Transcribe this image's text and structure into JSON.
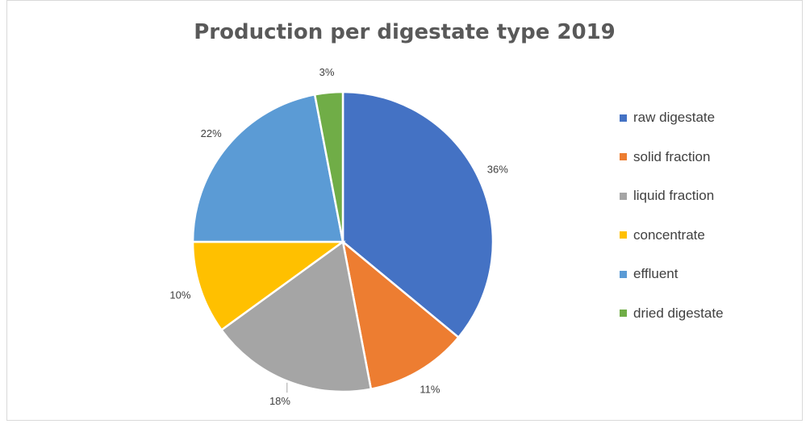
{
  "chart_data": {
    "type": "pie",
    "title": "Production per digestate type 2019",
    "legend_position": "right",
    "slices": [
      {
        "name": "raw digestate",
        "value": 36,
        "label": "36%",
        "color": "#4472c4"
      },
      {
        "name": "solid fraction",
        "value": 11,
        "label": "11%",
        "color": "#ed7d31"
      },
      {
        "name": "liquid fraction",
        "value": 18,
        "label": "18%",
        "color": "#a5a5a5"
      },
      {
        "name": "concentrate",
        "value": 10,
        "label": "10%",
        "color": "#ffc000"
      },
      {
        "name": "effluent",
        "value": 22,
        "label": "22%",
        "color": "#5b9bd5"
      },
      {
        "name": "dried digestate",
        "value": 3,
        "label": "3%",
        "color": "#70ad47"
      }
    ]
  }
}
